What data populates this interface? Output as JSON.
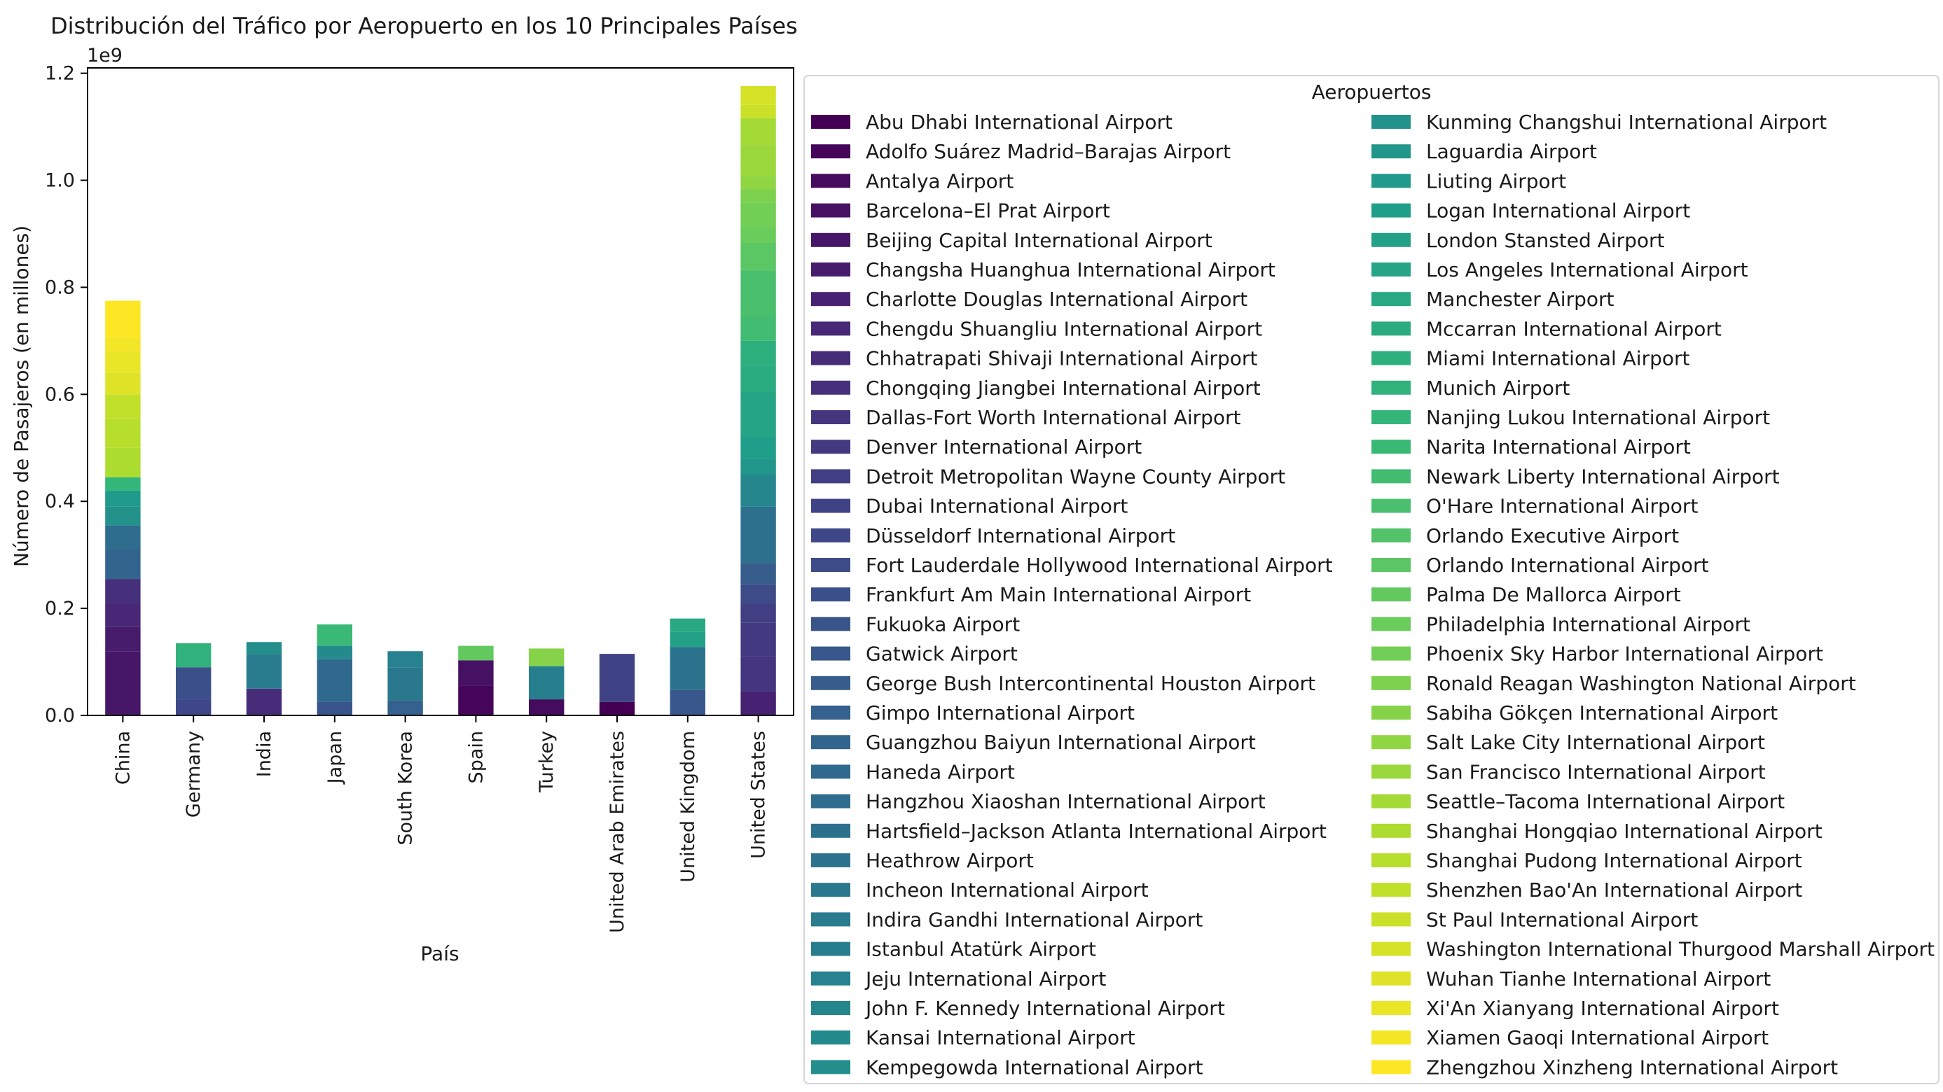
{
  "chart_data": {
    "type": "bar",
    "stacked": true,
    "title": "Distribución del Tráfico por Aeropuerto en los 10 Principales Países",
    "xlabel": "País",
    "ylabel": "Número de Pasajeros (en millones)",
    "y_offset_label": "1e9",
    "ylim": [
      0,
      1.21
    ],
    "yticks": [
      0.0,
      0.2,
      0.4,
      0.6,
      0.8,
      1.0,
      1.2
    ],
    "ytick_labels": [
      "0.0",
      "0.2",
      "0.4",
      "0.6",
      "0.8",
      "1.0",
      "1.2"
    ],
    "grid": false,
    "colormap": "viridis",
    "categories": [
      "China",
      "Germany",
      "India",
      "Japan",
      "South Korea",
      "Spain",
      "Turkey",
      "United Arab Emirates",
      "United Kingdom",
      "United States"
    ],
    "legend": {
      "title": "Aeropuertos",
      "placement": "outside-right",
      "columns": 2
    },
    "airports": [
      "Abu Dhabi International Airport",
      "Adolfo Suárez Madrid–Barajas Airport",
      "Antalya Airport",
      "Barcelona–El Prat Airport",
      "Beijing Capital International Airport",
      "Changsha Huanghua International Airport",
      "Charlotte Douglas International Airport",
      "Chengdu Shuangliu International Airport",
      "Chhatrapati Shivaji International Airport",
      "Chongqing Jiangbei International Airport",
      "Dallas-Fort Worth International Airport",
      "Denver International Airport",
      "Detroit Metropolitan Wayne County Airport",
      "Dubai International Airport",
      "Düsseldorf International Airport",
      "Fort Lauderdale Hollywood International Airport",
      "Frankfurt Am Main International Airport",
      "Fukuoka Airport",
      "Gatwick Airport",
      "George Bush Intercontinental Houston Airport",
      "Gimpo International Airport",
      "Guangzhou Baiyun International Airport",
      "Haneda Airport",
      "Hangzhou Xiaoshan International Airport",
      "Hartsfield–Jackson Atlanta International Airport",
      "Heathrow Airport",
      "Incheon International Airport",
      "Indira Gandhi International Airport",
      "Istanbul Atatürk Airport",
      "Jeju International Airport",
      "John F. Kennedy International Airport",
      "Kansai International Airport",
      "Kempegowda International Airport",
      "Kunming Changshui International Airport",
      "Laguardia Airport",
      "Liuting Airport",
      "Logan International Airport",
      "London Stansted Airport",
      "Los Angeles International Airport",
      "Manchester Airport",
      "Mccarran International Airport",
      "Miami International Airport",
      "Munich Airport",
      "Nanjing Lukou International Airport",
      "Narita International Airport",
      "Newark Liberty International Airport",
      "O'Hare International Airport",
      "Orlando Executive Airport",
      "Orlando International Airport",
      "Palma De Mallorca Airport",
      "Philadelphia International Airport",
      "Phoenix Sky Harbor International Airport",
      "Ronald Reagan Washington National Airport",
      "Sabiha Gökçen International Airport",
      "Salt Lake City International Airport",
      "San Francisco International Airport",
      "Seattle–Tacoma International Airport",
      "Shanghai Hongqiao International Airport",
      "Shanghai Pudong International Airport",
      "Shenzhen Bao'An International Airport",
      "St Paul International Airport",
      "Washington International Thurgood Marshall Airport",
      "Wuhan Tianhe International Airport",
      "Xi'An Xianyang International Airport",
      "Xiamen Gaoqi International Airport",
      "Zhengzhou Xinzheng International Airport"
    ],
    "segments": {
      "China": [
        [
          4,
          0.12
        ],
        [
          5,
          0.045
        ],
        [
          7,
          0.045
        ],
        [
          9,
          0.045
        ],
        [
          21,
          0.055
        ],
        [
          23,
          0.045
        ],
        [
          33,
          0.035
        ],
        [
          35,
          0.03
        ],
        [
          43,
          0.025
        ],
        [
          57,
          0.055
        ],
        [
          58,
          0.055
        ],
        [
          59,
          0.045
        ],
        [
          62,
          0.04
        ],
        [
          63,
          0.04
        ],
        [
          64,
          0.025
        ],
        [
          65,
          0.07
        ]
      ],
      "Germany": [
        [
          14,
          0.03
        ],
        [
          16,
          0.06
        ],
        [
          42,
          0.045
        ]
      ],
      "India": [
        [
          8,
          0.05
        ],
        [
          27,
          0.065
        ],
        [
          32,
          0.022
        ]
      ],
      "Japan": [
        [
          17,
          0.025
        ],
        [
          22,
          0.08
        ],
        [
          31,
          0.025
        ],
        [
          44,
          0.04
        ]
      ],
      "South Korea": [
        [
          20,
          0.028
        ],
        [
          26,
          0.062
        ],
        [
          29,
          0.03
        ]
      ],
      "Spain": [
        [
          1,
          0.055
        ],
        [
          3,
          0.048
        ],
        [
          49,
          0.027
        ]
      ],
      "Turkey": [
        [
          2,
          0.03
        ],
        [
          28,
          0.062
        ],
        [
          53,
          0.033
        ]
      ],
      "United Arab Emirates": [
        [
          0,
          0.025
        ],
        [
          13,
          0.09
        ]
      ],
      "United Kingdom": [
        [
          18,
          0.048
        ],
        [
          25,
          0.08
        ],
        [
          37,
          0.028
        ],
        [
          39,
          0.025
        ]
      ],
      "United States": [
        [
          6,
          0.045
        ],
        [
          10,
          0.065
        ],
        [
          11,
          0.063
        ],
        [
          12,
          0.035
        ],
        [
          15,
          0.037
        ],
        [
          19,
          0.04
        ],
        [
          24,
          0.105
        ],
        [
          30,
          0.06
        ],
        [
          34,
          0.03
        ],
        [
          36,
          0.04
        ],
        [
          38,
          0.085
        ],
        [
          40,
          0.05
        ],
        [
          41,
          0.045
        ],
        [
          45,
          0.045
        ],
        [
          46,
          0.085
        ],
        [
          47,
          0.003
        ],
        [
          48,
          0.05
        ],
        [
          50,
          0.03
        ],
        [
          51,
          0.045
        ],
        [
          52,
          0.025
        ],
        [
          54,
          0.025
        ],
        [
          55,
          0.058
        ],
        [
          56,
          0.05
        ],
        [
          60,
          0.025
        ],
        [
          61,
          0.035
        ]
      ]
    }
  }
}
